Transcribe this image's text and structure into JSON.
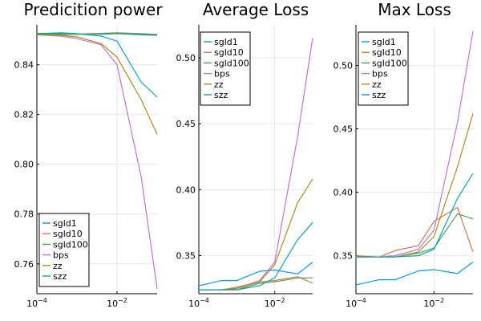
{
  "colors": {
    "sgld1": "#009AFA",
    "sgld10": "#E36F47",
    "sgld100": "#3EA44E",
    "bps": "#C271D2",
    "zz": "#AC8E18",
    "szz": "#00AAAE"
  },
  "chart_data": [
    {
      "type": "line",
      "title": "Predicition power",
      "xscale": "log",
      "x": [
        0.0001,
        0.0004,
        0.001,
        0.004,
        0.01,
        0.04,
        0.1
      ],
      "xlim": [
        0.0001,
        0.1
      ],
      "ylim": [
        0.748,
        0.856
      ],
      "xticks": [
        {
          "value": 0.0001,
          "label": "10",
          "exp": "−4"
        },
        {
          "value": 0.01,
          "label": "10",
          "exp": "−2"
        }
      ],
      "yticks": [
        {
          "value": 0.76,
          "label": "0.76"
        },
        {
          "value": 0.78,
          "label": "0.78"
        },
        {
          "value": 0.8,
          "label": "0.80"
        },
        {
          "value": 0.82,
          "label": "0.82"
        },
        {
          "value": 0.84,
          "label": "0.84"
        }
      ],
      "legend_position": "bottom-left",
      "series": [
        {
          "name": "sgld1",
          "values": [
            0.8525,
            0.8526,
            0.8524,
            0.8522,
            0.8525,
            0.852,
            0.8518
          ]
        },
        {
          "name": "sgld10",
          "values": [
            0.8522,
            0.8521,
            0.8523,
            0.8526,
            0.8528,
            0.8525,
            0.8522
          ]
        },
        {
          "name": "sgld100",
          "values": [
            0.8523,
            0.8524,
            0.8522,
            0.8524,
            0.8527,
            0.8523,
            0.852
          ]
        },
        {
          "name": "bps",
          "values": [
            0.852,
            0.8515,
            0.8505,
            0.848,
            0.84,
            0.795,
            0.75
          ]
        },
        {
          "name": "zz",
          "values": [
            0.852,
            0.8518,
            0.8512,
            0.8485,
            0.843,
            0.826,
            0.812
          ]
        },
        {
          "name": "szz",
          "values": [
            0.8525,
            0.8528,
            0.8525,
            0.8515,
            0.8495,
            0.833,
            0.827
          ]
        }
      ]
    },
    {
      "type": "line",
      "title": "Average Loss",
      "xscale": "log",
      "x": [
        0.0001,
        0.0004,
        0.001,
        0.004,
        0.01,
        0.04,
        0.1
      ],
      "xlim": [
        0.0001,
        0.1
      ],
      "ylim": [
        0.321,
        0.525
      ],
      "xticks": [
        {
          "value": 0.0001,
          "label": "10",
          "exp": "−4"
        },
        {
          "value": 0.01,
          "label": "10",
          "exp": "−2"
        }
      ],
      "yticks": [
        {
          "value": 0.35,
          "label": "0.35"
        },
        {
          "value": 0.4,
          "label": "0.40"
        },
        {
          "value": 0.45,
          "label": "0.45"
        },
        {
          "value": 0.5,
          "label": "0.50"
        }
      ],
      "legend_position": "top-left",
      "series": [
        {
          "name": "sgld1",
          "values": [
            0.327,
            0.331,
            0.331,
            0.338,
            0.339,
            0.336,
            0.345
          ]
        },
        {
          "name": "sgld10",
          "values": [
            0.324,
            0.324,
            0.326,
            0.33,
            0.331,
            0.334,
            0.329
          ]
        },
        {
          "name": "sgld100",
          "values": [
            0.324,
            0.324,
            0.324,
            0.329,
            0.33,
            0.333,
            0.333
          ]
        },
        {
          "name": "bps",
          "values": [
            0.324,
            0.324,
            0.325,
            0.331,
            0.345,
            0.44,
            0.515
          ]
        },
        {
          "name": "zz",
          "values": [
            0.324,
            0.324,
            0.325,
            0.33,
            0.343,
            0.39,
            0.408
          ]
        },
        {
          "name": "szz",
          "values": [
            0.324,
            0.324,
            0.324,
            0.327,
            0.333,
            0.362,
            0.375
          ]
        }
      ]
    },
    {
      "type": "line",
      "title": "Max Loss",
      "xscale": "log",
      "x": [
        0.0001,
        0.0004,
        0.001,
        0.004,
        0.01,
        0.04,
        0.1
      ],
      "xlim": [
        0.0001,
        0.1
      ],
      "ylim": [
        0.32,
        0.532
      ],
      "xticks": [
        {
          "value": 0.0001,
          "label": "10",
          "exp": "−4"
        },
        {
          "value": 0.01,
          "label": "10",
          "exp": "−2"
        }
      ],
      "yticks": [
        {
          "value": 0.35,
          "label": "0.35"
        },
        {
          "value": 0.4,
          "label": "0.40"
        },
        {
          "value": 0.45,
          "label": "0.45"
        },
        {
          "value": 0.5,
          "label": "0.50"
        }
      ],
      "legend_position": "top-left",
      "series": [
        {
          "name": "sgld1",
          "values": [
            0.327,
            0.331,
            0.331,
            0.338,
            0.339,
            0.336,
            0.345
          ]
        },
        {
          "name": "sgld10",
          "values": [
            0.35,
            0.349,
            0.354,
            0.358,
            0.377,
            0.388,
            0.353
          ]
        },
        {
          "name": "sgld100",
          "values": [
            0.349,
            0.349,
            0.349,
            0.352,
            0.356,
            0.383,
            0.379
          ]
        },
        {
          "name": "bps",
          "values": [
            0.349,
            0.349,
            0.35,
            0.355,
            0.37,
            0.455,
            0.527
          ]
        },
        {
          "name": "zz",
          "values": [
            0.349,
            0.349,
            0.349,
            0.353,
            0.365,
            0.42,
            0.462
          ]
        },
        {
          "name": "szz",
          "values": [
            0.349,
            0.349,
            0.349,
            0.35,
            0.355,
            0.395,
            0.415
          ]
        }
      ]
    }
  ]
}
